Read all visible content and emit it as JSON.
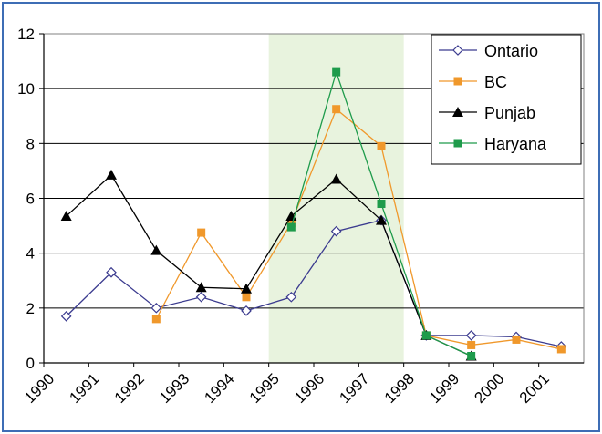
{
  "chart_data": {
    "type": "line",
    "title": "",
    "xlabel": "",
    "ylabel": "",
    "x_tick_labels": [
      "1990",
      "1991",
      "1992",
      "1993",
      "1994",
      "1995",
      "1996",
      "1997",
      "1998",
      "1999",
      "2000",
      "2001"
    ],
    "y_tick_labels": [
      "0",
      "2",
      "4",
      "6",
      "8",
      "10",
      "12"
    ],
    "ylim": [
      0,
      12
    ],
    "grid": "horizontal",
    "highlight_band": {
      "from": "1995",
      "to": "1998",
      "color": "#e8f3de"
    },
    "legend_position": "top-right",
    "series": [
      {
        "name": "Ontario",
        "color": "#3b3b8f",
        "marker": "diamond-open",
        "x": [
          1990.5,
          1991.5,
          1992.5,
          1993.5,
          1994.5,
          1995.5,
          1996.5,
          1997.5,
          1998.5,
          1999.5,
          2000.5,
          2001.5
        ],
        "values": [
          1.7,
          3.3,
          2.0,
          2.4,
          1.9,
          2.4,
          4.8,
          5.2,
          1.0,
          1.0,
          0.95,
          0.6
        ]
      },
      {
        "name": "BC",
        "color": "#f0982b",
        "marker": "square",
        "x": [
          1992.5,
          1993.5,
          1994.5,
          1995.5,
          1996.5,
          1997.5,
          1998.5,
          1999.5,
          2000.5,
          2001.5
        ],
        "values": [
          1.6,
          4.75,
          2.4,
          5.1,
          9.25,
          7.9,
          1.0,
          0.65,
          0.85,
          0.5
        ]
      },
      {
        "name": "Punjab",
        "color": "#000000",
        "marker": "triangle",
        "x": [
          1990.5,
          1991.5,
          1992.5,
          1993.5,
          1994.5,
          1995.5,
          1996.5,
          1997.5,
          1998.5,
          1999.5
        ],
        "values": [
          5.35,
          6.85,
          4.1,
          2.75,
          2.7,
          5.35,
          6.7,
          5.2,
          1.0,
          0.25
        ]
      },
      {
        "name": "Haryana",
        "color": "#1e9b4b",
        "marker": "square",
        "x": [
          1995.5,
          1996.5,
          1997.5,
          1998.5,
          1999.5
        ],
        "values": [
          4.95,
          10.6,
          5.8,
          1.0,
          0.25
        ]
      }
    ]
  }
}
